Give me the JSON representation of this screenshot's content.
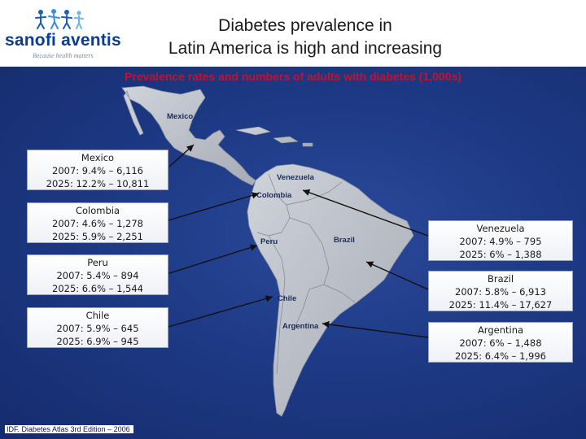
{
  "header": {
    "logo_word": "sanofi aventis",
    "logo_tagline": "Because health matters",
    "title_line1": "Diabetes prevalence in",
    "title_line2": "Latin America is high and increasing"
  },
  "subtitle": "Prevalence rates and numbers of adults with diabetes (1,000s)",
  "map_labels": {
    "mexico": "Mexico",
    "venezuela": "Venezuela",
    "colombia": "Colombia",
    "peru": "Peru",
    "brazil": "Brazil",
    "chile": "Chile",
    "argentina": "Argentina"
  },
  "boxes": {
    "mexico": {
      "name": "Mexico",
      "line2007": "2007: 9.4% – 6,116",
      "line2025": "2025: 12.2% – 10,811"
    },
    "colombia": {
      "name": "Colombia",
      "line2007": "2007: 4.6% – 1,278",
      "line2025": "2025: 5.9% – 2,251"
    },
    "peru": {
      "name": "Peru",
      "line2007": "2007: 5.4% – 894",
      "line2025": "2025: 6.6% – 1,544"
    },
    "chile": {
      "name": "Chile",
      "line2007": "2007: 5.9% – 645",
      "line2025": "2025: 6.9% – 945"
    },
    "venezuela": {
      "name": "Venezuela",
      "line2007": "2007: 4.9% – 795",
      "line2025": "2025: 6% – 1,388"
    },
    "brazil": {
      "name": "Brazil",
      "line2007": "2007: 5.8% – 6,913",
      "line2025": "2025: 11.4% – 17,627"
    },
    "argentina": {
      "name": "Argentina",
      "line2007": "2007: 6% – 1,488",
      "line2025": "2025: 6.4% – 1,996"
    }
  },
  "source": "IDF. Diabetes Atlas 3rd Edition – 2006",
  "colors": {
    "background": "#1e3a86",
    "land": "#b8bcc4",
    "title_red": "#c0142a",
    "logo_blue": "#0a3d8f"
  }
}
